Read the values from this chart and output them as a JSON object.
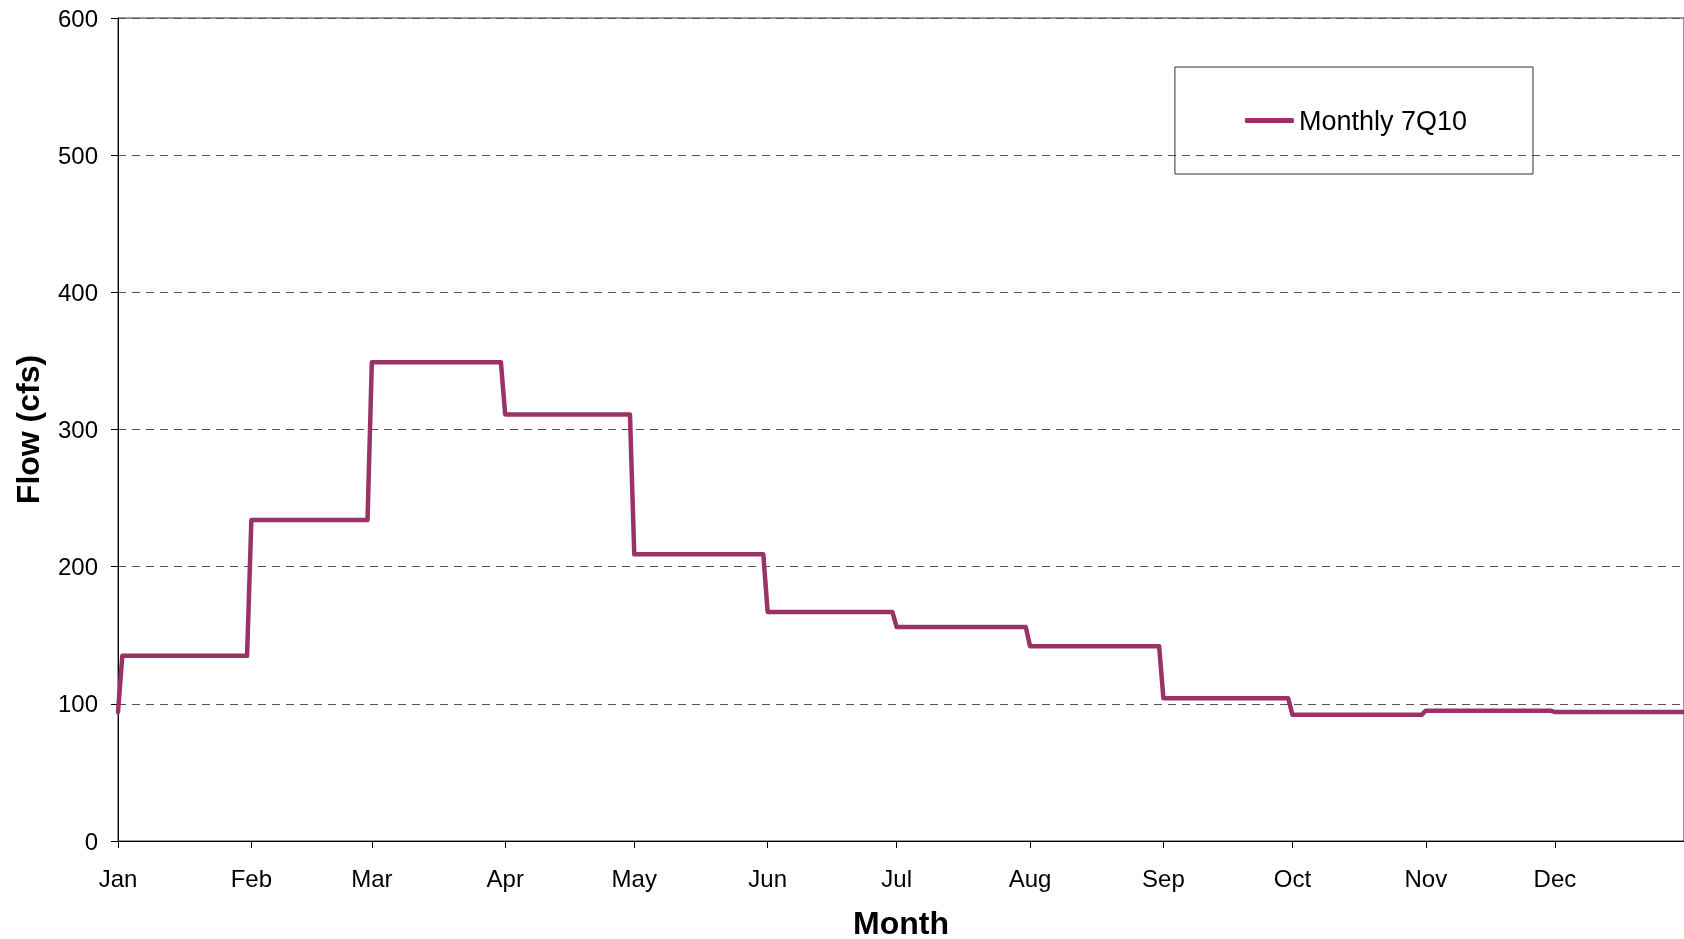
{
  "chart_data": {
    "type": "line",
    "xlabel": "Month",
    "ylabel": "Flow (cfs)",
    "x": [
      "--01-01",
      "--01-02",
      "--01-31",
      "--02-01",
      "--02-28",
      "--03-01",
      "--03-31",
      "--04-01",
      "--04-30",
      "--05-01",
      "--05-31",
      "--06-01",
      "--06-30",
      "--07-01",
      "--07-31",
      "--08-01",
      "--08-31",
      "--09-01",
      "--09-30",
      "--10-01",
      "--10-31",
      "--11-01",
      "--11-30",
      "--12-01",
      "--12-31"
    ],
    "series": [
      {
        "name": "Monthly 7Q10",
        "color": "#993366",
        "values": [
          94,
          135,
          135,
          234,
          234,
          349,
          349,
          311,
          311,
          209,
          209,
          167,
          167,
          156,
          156,
          142,
          142,
          104,
          104,
          92,
          92,
          95,
          95,
          94,
          94
        ]
      }
    ],
    "xlim": [
      "--01-01",
      "--12-31"
    ],
    "xticks": [
      {
        "value": "--01-01",
        "label": "Jan"
      },
      {
        "value": "--02-01",
        "label": "Feb"
      },
      {
        "value": "--03-01",
        "label": "Mar"
      },
      {
        "value": "--04-01",
        "label": "Apr"
      },
      {
        "value": "--05-01",
        "label": "May"
      },
      {
        "value": "--06-01",
        "label": "Jun"
      },
      {
        "value": "--07-01",
        "label": "Jul"
      },
      {
        "value": "--08-01",
        "label": "Aug"
      },
      {
        "value": "--09-01",
        "label": "Sep"
      },
      {
        "value": "--10-01",
        "label": "Oct"
      },
      {
        "value": "--11-01",
        "label": "Nov"
      },
      {
        "value": "--12-01",
        "label": "Dec"
      }
    ],
    "ylim": [
      0,
      600
    ],
    "yticks": [
      0,
      100,
      200,
      300,
      400,
      500,
      600
    ],
    "grid": "y",
    "legend": "top right",
    "marker": "none",
    "line_style": "solid"
  }
}
